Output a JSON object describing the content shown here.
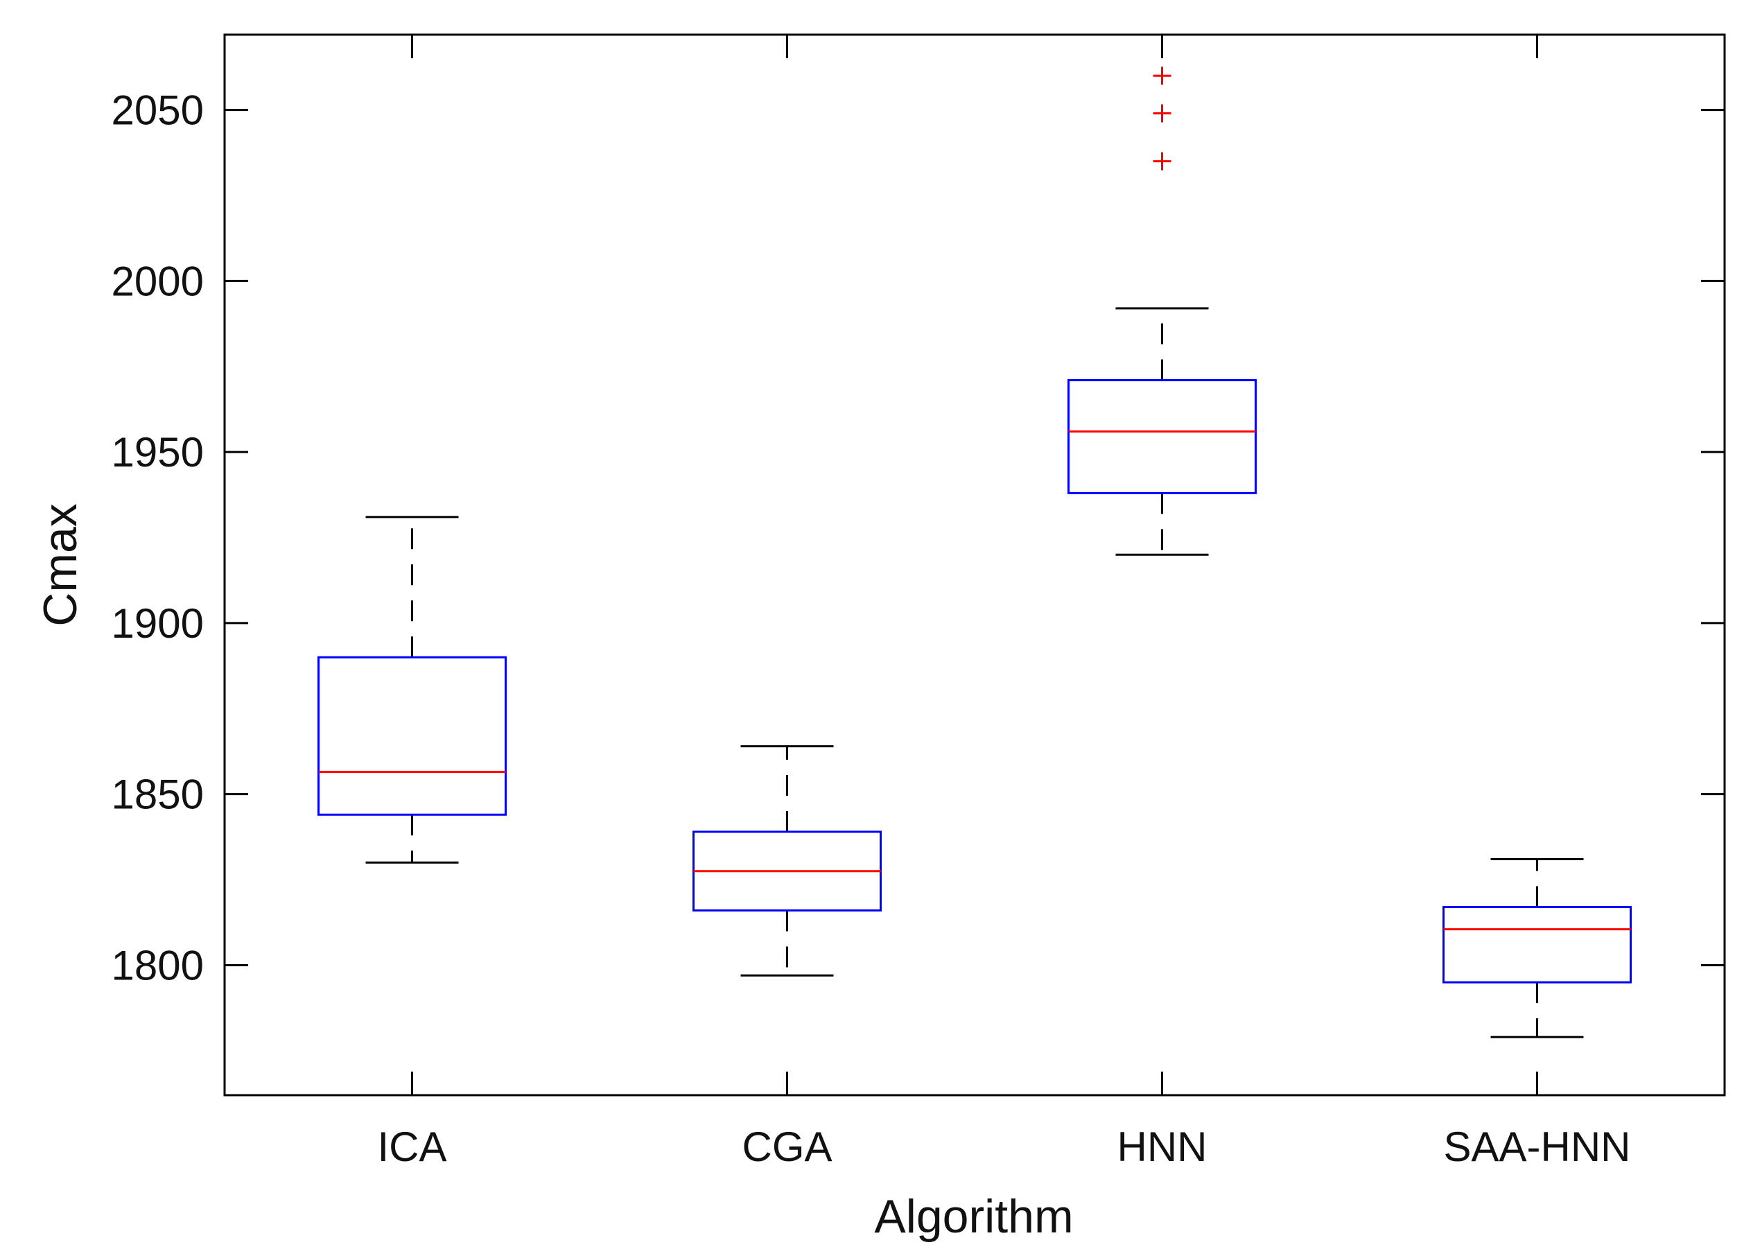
{
  "chart_data": {
    "type": "boxplot",
    "title": "",
    "xlabel": "Algorithm",
    "ylabel": "Cmax",
    "categories": [
      "ICA",
      "CGA",
      "HNN",
      "SAA-HNN"
    ],
    "ylim": [
      1762,
      2072
    ],
    "yticks": [
      1800,
      1850,
      1900,
      1950,
      2000,
      2050
    ],
    "ytick_labels": [
      "1800",
      "1850",
      "1900",
      "1950",
      "2000",
      "2050"
    ],
    "boxes": [
      {
        "name": "ICA",
        "whisker_low": 1830,
        "q1": 1844,
        "median": 1856.5,
        "q3": 1890,
        "whisker_high": 1931,
        "outliers": []
      },
      {
        "name": "CGA",
        "whisker_low": 1797,
        "q1": 1816,
        "median": 1827.5,
        "q3": 1839,
        "whisker_high": 1864,
        "outliers": []
      },
      {
        "name": "HNN",
        "whisker_low": 1920,
        "q1": 1938,
        "median": 1956,
        "q3": 1971,
        "whisker_high": 1992,
        "outliers": [
          2035,
          2049,
          2060
        ]
      },
      {
        "name": "SAA-HNN",
        "whisker_low": 1779,
        "q1": 1795,
        "median": 1810.5,
        "q3": 1817,
        "whisker_high": 1831,
        "outliers": []
      }
    ],
    "colors": {
      "box": "#0000ff",
      "median": "#ff0000",
      "whisker": "#000000",
      "outlier": "#ff0000",
      "axis": "#000000"
    }
  }
}
